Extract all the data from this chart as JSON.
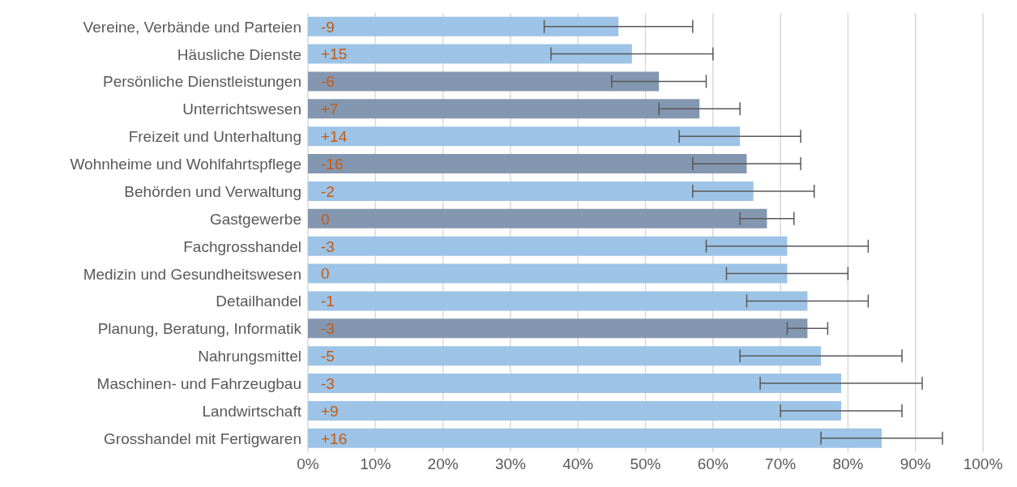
{
  "chart_data": {
    "type": "bar",
    "orientation": "horizontal",
    "categories": [
      "Vereine, Verbände und Parteien",
      "Häusliche Dienste",
      "Persönliche Dienstleistungen",
      "Unterrichtswesen",
      "Freizeit und Unterhaltung",
      "Wohnheime und Wohlfahrtspflege",
      "Behörden und Verwaltung",
      "Gastgewerbe",
      "Fachgrosshandel",
      "Medizin und Gesundheitswesen",
      "Detailhandel",
      "Planung, Beratung, Informatik",
      "Nahrungsmittel",
      "Maschinen- und Fahrzeugbau",
      "Landwirtschaft",
      "Grosshandel mit Fertigwaren"
    ],
    "values": [
      46,
      48,
      52,
      58,
      64,
      65,
      66,
      68,
      71,
      71,
      74,
      74,
      76,
      79,
      79,
      85
    ],
    "colors": [
      "#9dc3e6",
      "#9dc3e6",
      "#8497b0",
      "#8497b0",
      "#9dc3e6",
      "#8497b0",
      "#9dc3e6",
      "#8497b0",
      "#9dc3e6",
      "#9dc3e6",
      "#9dc3e6",
      "#8497b0",
      "#9dc3e6",
      "#9dc3e6",
      "#9dc3e6",
      "#9dc3e6"
    ],
    "errors": [
      [
        35,
        57
      ],
      [
        36,
        60
      ],
      [
        45,
        59
      ],
      [
        52,
        64
      ],
      [
        55,
        73
      ],
      [
        57,
        73
      ],
      [
        57,
        75
      ],
      [
        64,
        72
      ],
      [
        59,
        83
      ],
      [
        62,
        80
      ],
      [
        65,
        83
      ],
      [
        71,
        77
      ],
      [
        64,
        88
      ],
      [
        67,
        91
      ],
      [
        70,
        88
      ],
      [
        76,
        94
      ]
    ],
    "annotations": [
      {
        "text": "-9",
        "y": "Vereine, Verbände und Parteien"
      },
      {
        "text": "+15",
        "y": "Häusliche Dienste"
      },
      {
        "text": "-6",
        "y": "Persönliche Dienstleistungen"
      },
      {
        "text": "+7",
        "y": "Unterrichtswesen"
      },
      {
        "text": "+14",
        "y": "Freizeit und Unterhaltung"
      },
      {
        "text": "-16",
        "y": "Wohnheime und Wohlfahrtspflege"
      },
      {
        "text": "-2",
        "y": "Behörden und Verwaltung"
      },
      {
        "text": "0",
        "y": "Gastgewerbe"
      },
      {
        "text": "-3",
        "y": "Fachgrosshandel"
      },
      {
        "text": "0",
        "y": "Medizin und Gesundheitswesen"
      },
      {
        "text": "-1",
        "y": "Detailhandel"
      },
      {
        "text": "-3",
        "y": "Planung, Beratung, Informatik"
      },
      {
        "text": "-5",
        "y": "Nahrungsmittel"
      },
      {
        "text": "-3",
        "y": "Maschinen- und Fahrzeugbau"
      },
      {
        "text": "+9",
        "y": "Landwirtschaft"
      },
      {
        "text": "+16",
        "y": "Grosshandel mit Fertigwaren"
      }
    ],
    "xlim": [
      0,
      100
    ],
    "xticks": [
      {
        "value": 0,
        "label": "0%"
      },
      {
        "value": 10,
        "label": "10%"
      },
      {
        "value": 20,
        "label": "20%"
      },
      {
        "value": 30,
        "label": "30%"
      },
      {
        "value": 40,
        "label": "40%"
      },
      {
        "value": 50,
        "label": "50%"
      },
      {
        "value": 60,
        "label": "60%"
      },
      {
        "value": 70,
        "label": "70%"
      },
      {
        "value": 80,
        "label": "80%"
      },
      {
        "value": 90,
        "label": "90%"
      },
      {
        "value": 100,
        "label": "100%"
      }
    ],
    "grid": "x"
  }
}
